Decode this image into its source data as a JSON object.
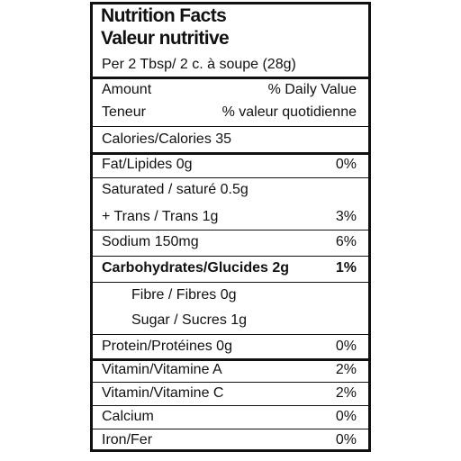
{
  "header": {
    "title": "Nutrition Facts",
    "subtitle": "Valeur nutritive"
  },
  "serving": "Per 2 Tbsp/ 2 c. à soupe (28g)",
  "columns": [
    [
      "Amount",
      "% Daily Value"
    ],
    [
      "Teneur",
      "% valeur quotidienne"
    ]
  ],
  "rows": [
    [
      "Calories/Calories 35"
    ],
    [
      "Fat/Lipides 0g",
      "0%"
    ],
    [
      "Saturated / saturé 0.5g"
    ],
    [
      "+ Trans / Trans 1g",
      "3%"
    ],
    [
      "Sodium 150mg",
      "6%"
    ],
    [
      "Carbohydrates/Glucides 2g",
      "1%"
    ],
    [
      "Fibre / Fibres 0g"
    ],
    [
      "Sugar / Sucres 1g"
    ],
    [
      "Protein/Protéines 0g",
      "0%"
    ],
    [
      "Vitamin/Vitamine A",
      "2%"
    ],
    [
      "Vitamin/Vitamine C",
      "2%"
    ],
    [
      "Calcium",
      "0%"
    ],
    [
      "Iron/Fer",
      "0%"
    ]
  ]
}
